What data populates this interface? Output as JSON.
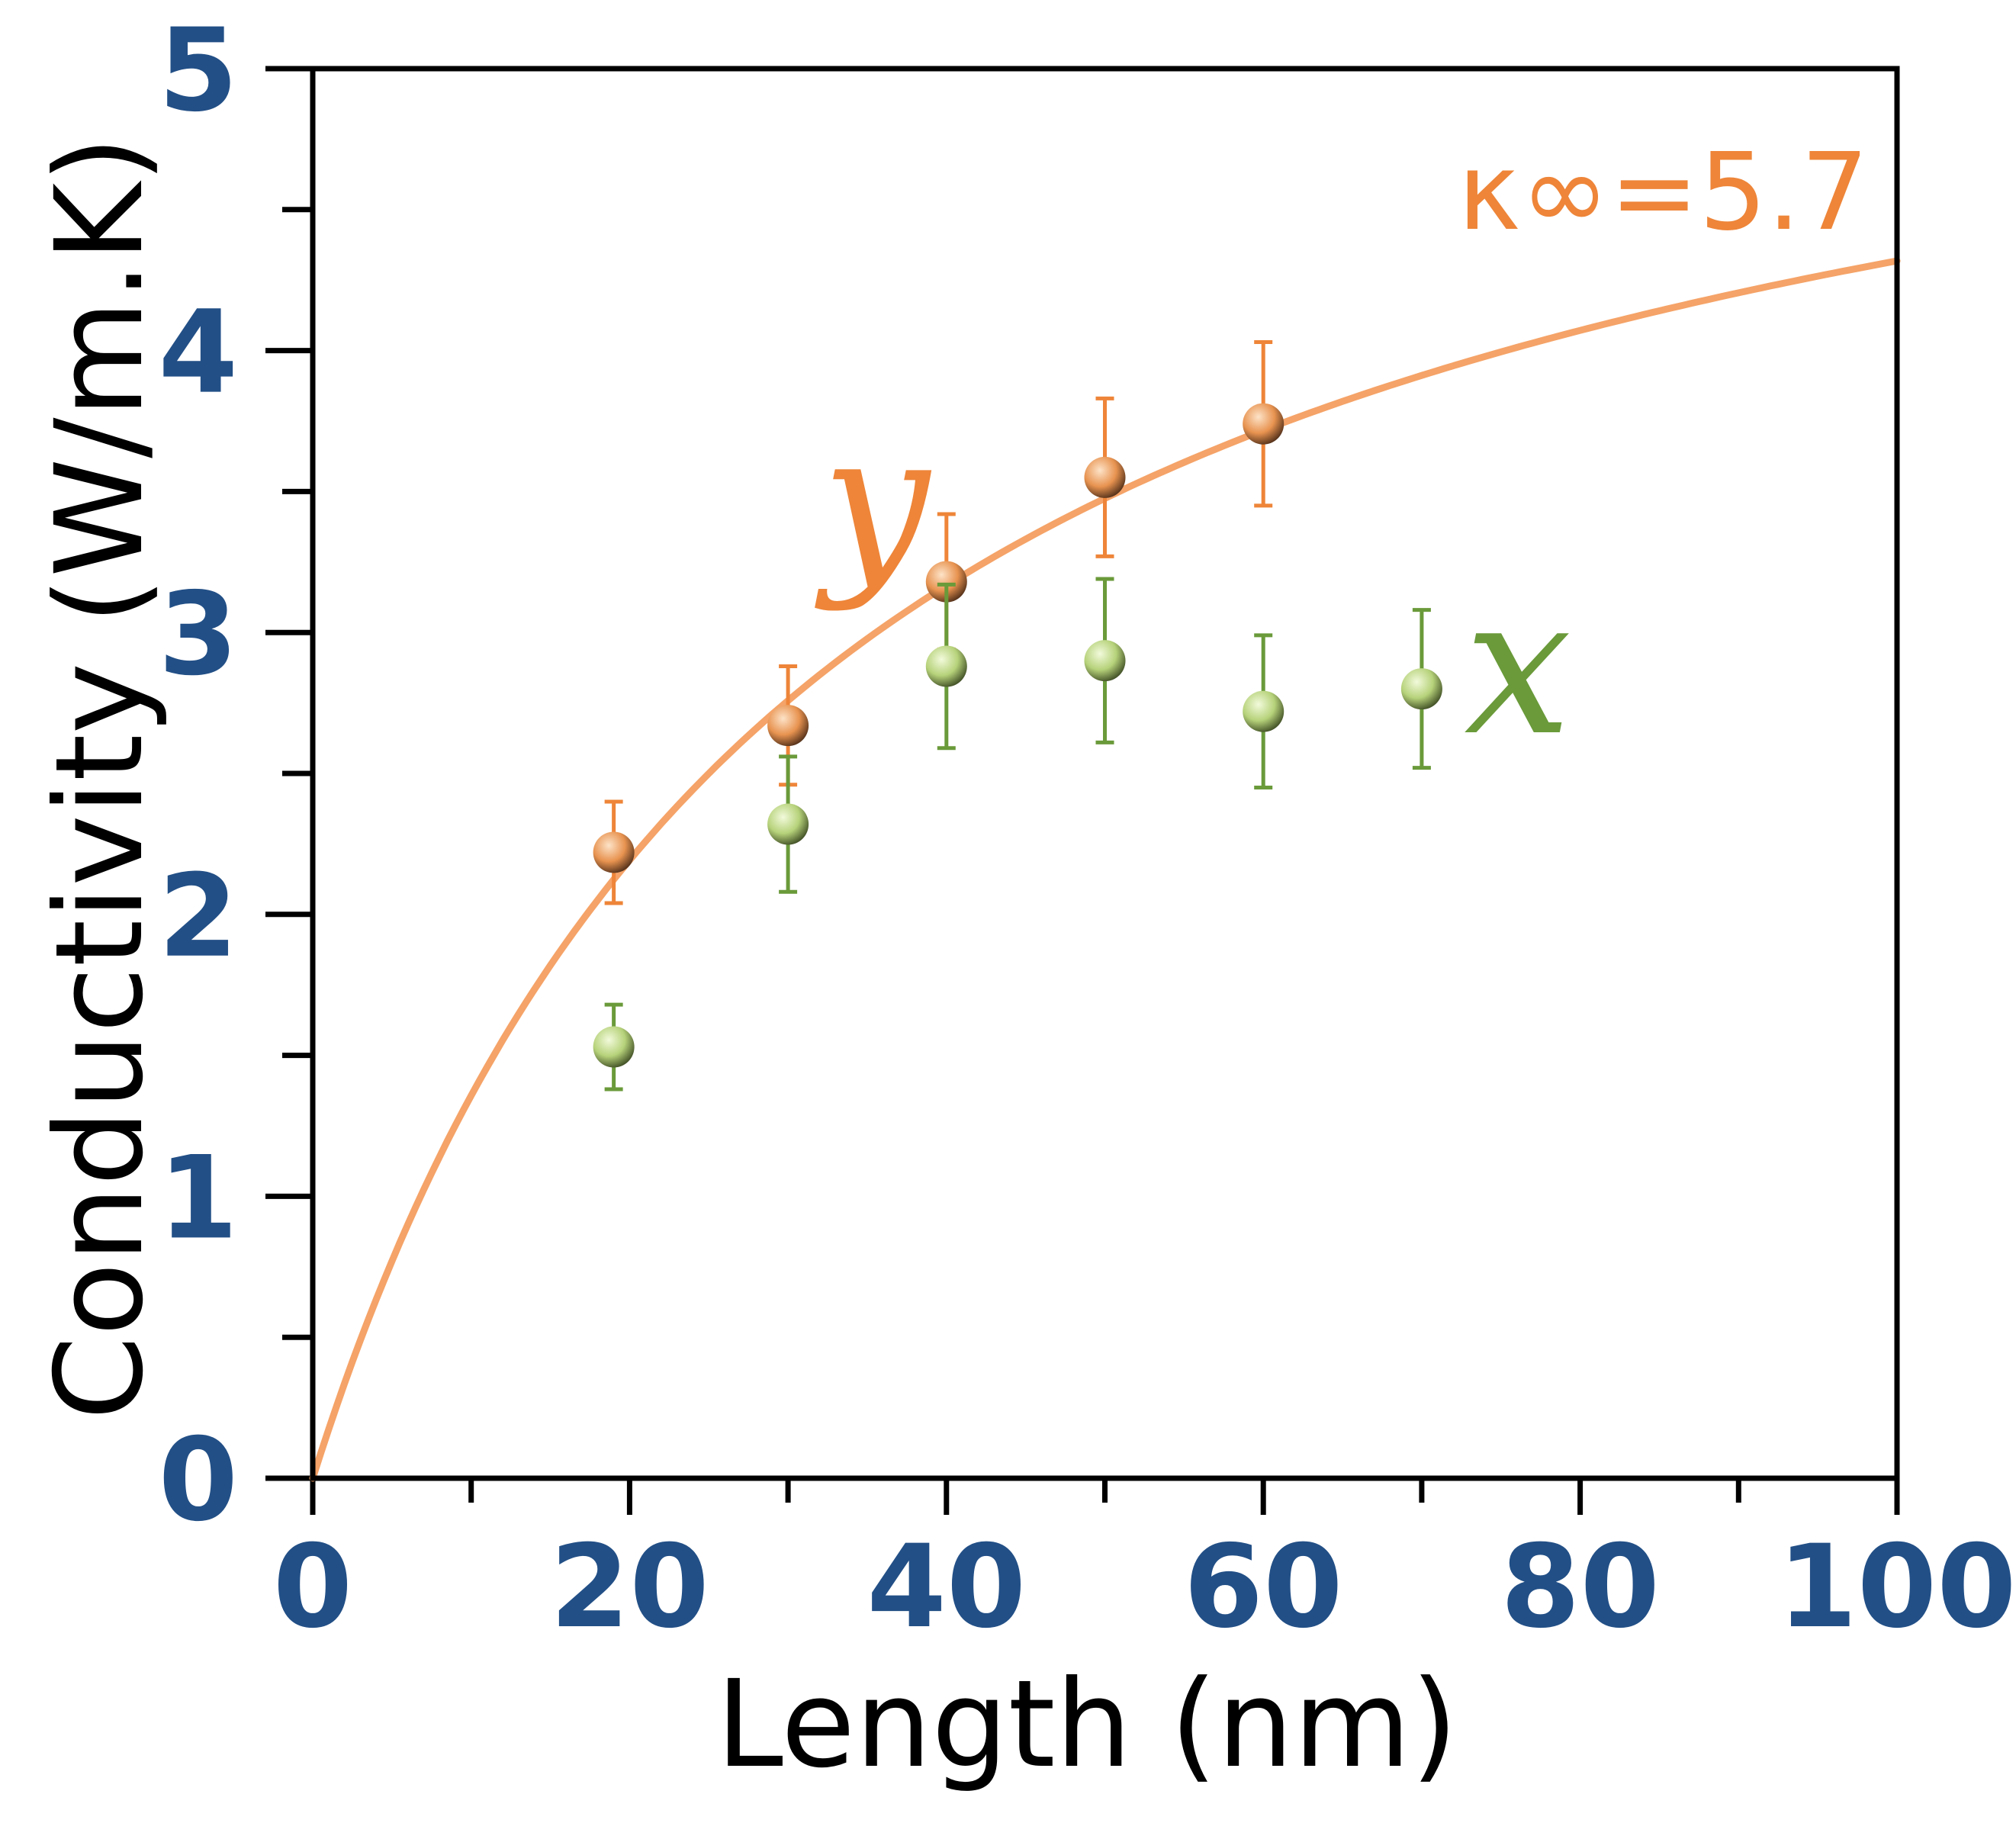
{
  "chart_data": {
    "type": "scatter",
    "title": "",
    "xlabel": "Length (nm)",
    "ylabel": "Conductivity (W/m.K)",
    "xlim": [
      0,
      100
    ],
    "ylim": [
      0,
      5
    ],
    "x_ticks": [
      "0",
      "20",
      "40",
      "60",
      "80",
      "100"
    ],
    "y_ticks": [
      "0",
      "1",
      "2",
      "3",
      "4",
      "5"
    ],
    "grid": false,
    "series": [
      {
        "name": "y",
        "color": "#ee8539",
        "x": [
          19,
          30,
          40,
          50,
          60
        ],
        "y": [
          2.22,
          2.67,
          3.18,
          3.55,
          3.74
        ],
        "err": [
          0.18,
          0.21,
          0.24,
          0.28,
          0.29
        ]
      },
      {
        "name": "x",
        "color": "#6a9a3a",
        "x": [
          19,
          30,
          40,
          50,
          60,
          70
        ],
        "y": [
          1.53,
          2.32,
          2.88,
          2.9,
          2.72,
          2.8
        ],
        "err": [
          0.15,
          0.24,
          0.29,
          0.29,
          0.27,
          0.28
        ]
      }
    ],
    "fit": {
      "label": "κ∞=5.7",
      "color": "#f5a368",
      "kappa_inf": 5.7,
      "lambda_nm": 32,
      "model": "kappa_inf * L / (L + lambda)"
    }
  }
}
